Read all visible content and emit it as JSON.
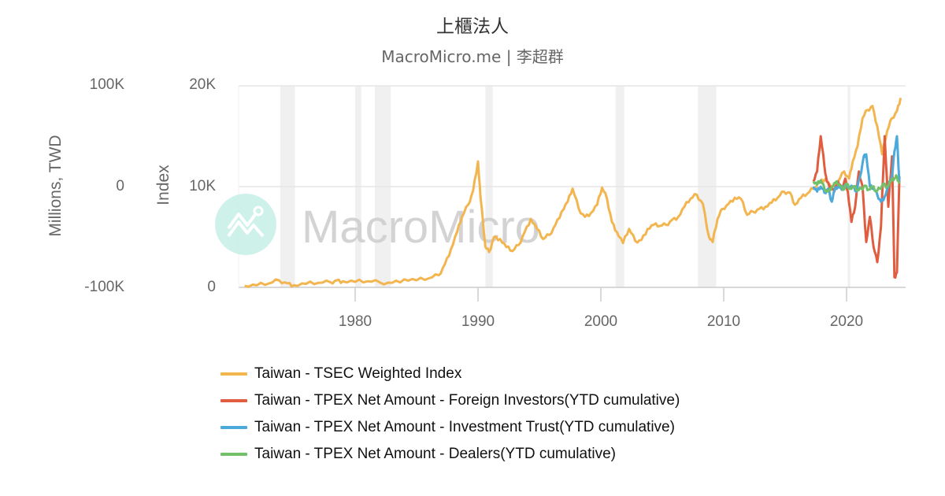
{
  "header": {
    "title": "上櫃法人",
    "subtitle": "MacroMicro.me | 李超群"
  },
  "watermark": {
    "text": "MacroMicro",
    "icon": "macromicro-logo-icon"
  },
  "axes": {
    "left": {
      "label": "Millions, TWD",
      "ticks": [
        "100K",
        "0",
        "-100K"
      ]
    },
    "right": {
      "label": "Index",
      "ticks": [
        "20K",
        "10K",
        "0"
      ]
    },
    "x": {
      "ticks": [
        "1980",
        "1990",
        "2000",
        "2010",
        "2020"
      ]
    }
  },
  "legend": {
    "items": [
      {
        "label": "Taiwan - TSEC Weighted Index",
        "color": "#f2b54f"
      },
      {
        "label": "Taiwan - TPEX Net Amount - Foreign Investors(YTD cumulative)",
        "color": "#e05d3f"
      },
      {
        "label": "Taiwan - TPEX Net Amount - Investment Trust(YTD cumulative)",
        "color": "#4ba9dc"
      },
      {
        "label": "Taiwan - TPEX Net Amount - Dealers(YTD cumulative)",
        "color": "#72c16a"
      }
    ]
  },
  "chart_data": {
    "type": "line",
    "title": "上櫃法人",
    "subtitle": "MacroMicro.me | 李超群",
    "xlabel": "",
    "ylabel_left": "Millions, TWD",
    "ylabel_right": "Index",
    "ylim_left": [
      -100000,
      100000
    ],
    "ylim_right": [
      0,
      20000
    ],
    "xlim": [
      1971,
      2024.5
    ],
    "grid": true,
    "legend_position": "bottom",
    "recession_bands": [
      [
        1973.9,
        1975.1
      ],
      [
        1980.0,
        1980.5
      ],
      [
        1981.6,
        1982.9
      ],
      [
        1990.6,
        1991.2
      ],
      [
        2001.2,
        2001.9
      ],
      [
        2007.9,
        2009.4
      ],
      [
        2020.1,
        2020.3
      ]
    ],
    "series": [
      {
        "name": "Taiwan - TSEC Weighted Index",
        "axis": "right",
        "color": "#f2b54f",
        "x": [
          1971,
          1972,
          1973,
          1973.8,
          1974.5,
          1975,
          1976,
          1977,
          1978,
          1978.5,
          1979,
          1980,
          1981,
          1982,
          1983,
          1984,
          1985,
          1986,
          1986.8,
          1987.3,
          1987.8,
          1988.3,
          1988.7,
          1989.2,
          1989.6,
          1990.0,
          1990.2,
          1990.6,
          1990.9,
          1991.3,
          1991.8,
          1992.3,
          1992.8,
          1993.3,
          1993.8,
          1994.3,
          1994.8,
          1995.3,
          1995.8,
          1996.3,
          1996.8,
          1997.3,
          1997.7,
          1998.2,
          1998.7,
          1999.2,
          1999.7,
          2000.1,
          2000.5,
          2000.9,
          2001.3,
          2001.8,
          2002.3,
          2002.8,
          2003.3,
          2003.8,
          2004.3,
          2004.8,
          2005.3,
          2005.8,
          2006.3,
          2006.8,
          2007.3,
          2007.8,
          2008.3,
          2008.8,
          2009.1,
          2009.5,
          2009.9,
          2010.4,
          2010.9,
          2011.4,
          2011.9,
          2012.4,
          2012.9,
          2013.4,
          2013.9,
          2014.4,
          2014.9,
          2015.4,
          2015.8,
          2016.3,
          2016.8,
          2017.3,
          2017.8,
          2018.3,
          2018.8,
          2019.3,
          2019.8,
          2020.2,
          2020.5,
          2020.9,
          2021.3,
          2021.7,
          2022.1,
          2022.5,
          2022.9,
          2023.3,
          2023.7,
          2024.1,
          2024.4
        ],
        "values": [
          150,
          200,
          400,
          700,
          400,
          200,
          350,
          450,
          500,
          700,
          600,
          550,
          600,
          500,
          450,
          800,
          700,
          900,
          1200,
          2300,
          3800,
          5500,
          7000,
          8200,
          9600,
          12500,
          9000,
          4000,
          3500,
          5000,
          4800,
          4000,
          3600,
          4200,
          5500,
          6800,
          5800,
          4800,
          5200,
          6200,
          7500,
          8500,
          9800,
          7800,
          7000,
          7400,
          8200,
          9900,
          8800,
          6500,
          5500,
          4400,
          5800,
          4600,
          4700,
          5800,
          6200,
          6100,
          6200,
          6700,
          7000,
          8000,
          8800,
          9200,
          8300,
          5000,
          4500,
          6800,
          7800,
          8300,
          8900,
          8800,
          7200,
          7500,
          7800,
          8000,
          8400,
          8900,
          9500,
          9400,
          8200,
          8900,
          9300,
          9800,
          10500,
          10800,
          9800,
          10500,
          11500,
          10800,
          12500,
          14000,
          16800,
          17600,
          18000,
          16000,
          13200,
          15500,
          16800,
          17500,
          18800
        ]
      },
      {
        "name": "Taiwan - TPEX Net Amount - Foreign Investors(YTD cumulative)",
        "axis": "left",
        "color": "#e05d3f",
        "x": [
          2017.3,
          2017.6,
          2017.9,
          2018.2,
          2018.4,
          2018.7,
          2019.0,
          2019.3,
          2019.6,
          2019.9,
          2020.1,
          2020.4,
          2020.7,
          2021.0,
          2021.3,
          2021.6,
          2021.9,
          2022.2,
          2022.5,
          2022.8,
          2023.1,
          2023.4,
          2023.7,
          2023.9,
          2024.1,
          2024.3
        ],
        "values": [
          5000,
          15000,
          50000,
          20000,
          5000,
          0,
          -5000,
          5000,
          -3000,
          8000,
          -5000,
          -35000,
          -20000,
          15000,
          0,
          -55000,
          -30000,
          -60000,
          -75000,
          -40000,
          50000,
          -20000,
          30000,
          -90000,
          -85000,
          10000
        ]
      },
      {
        "name": "Taiwan - TPEX Net Amount - Investment Trust(YTD cumulative)",
        "axis": "left",
        "color": "#4ba9dc",
        "x": [
          2017.3,
          2017.6,
          2017.9,
          2018.2,
          2018.5,
          2018.8,
          2019.0,
          2019.3,
          2019.6,
          2019.9,
          2020.2,
          2020.5,
          2020.8,
          2021.1,
          2021.4,
          2021.6,
          2021.9,
          2022.2,
          2022.5,
          2022.8,
          2023.1,
          2023.4,
          2023.7,
          2023.9,
          2024.1,
          2024.3
        ],
        "values": [
          0,
          -5000,
          0,
          -6000,
          -2000,
          -15000,
          -4000,
          0,
          -3000,
          2000,
          0,
          0,
          -5000,
          10000,
          30000,
          32000,
          0,
          -2000,
          -8000,
          -15000,
          -10000,
          0,
          10000,
          35000,
          50000,
          5000
        ]
      },
      {
        "name": "Taiwan - TPEX Net Amount - Dealers(YTD cumulative)",
        "axis": "left",
        "color": "#72c16a",
        "x": [
          2017.3,
          2017.6,
          2017.9,
          2018.2,
          2018.5,
          2018.8,
          2019.1,
          2019.4,
          2019.7,
          2020.0,
          2020.3,
          2020.6,
          2020.9,
          2021.2,
          2021.5,
          2021.8,
          2022.1,
          2022.4,
          2022.7,
          2023.0,
          2023.3,
          2023.6,
          2023.9,
          2024.1,
          2024.3
        ],
        "values": [
          5000,
          2000,
          6000,
          -2000,
          -5000,
          0,
          4000,
          2000,
          -3000,
          3000,
          -2000,
          0,
          -4000,
          -2000,
          1000,
          -3000,
          0,
          -5000,
          -2000,
          3000,
          0,
          5000,
          8000,
          10000,
          3000
        ]
      }
    ]
  }
}
